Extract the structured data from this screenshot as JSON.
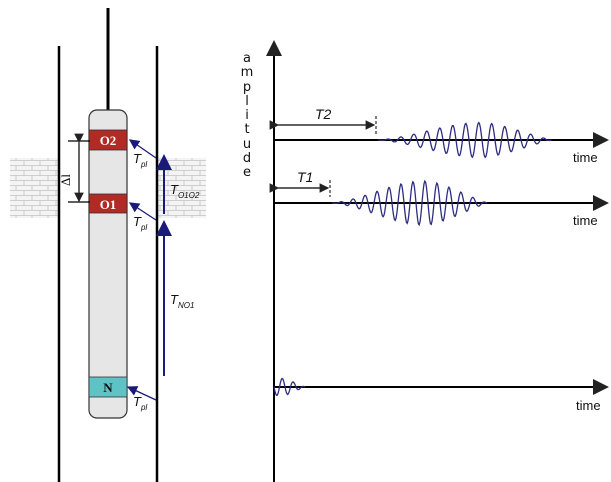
{
  "tool": {
    "labels": {
      "receiver_top": "O2",
      "receiver_bottom": "O1",
      "source": "N",
      "spacing": "Δl",
      "tpl_top": "T",
      "tpl_mid": "T",
      "tpl_bottom": "T",
      "tpl_sub": "pl",
      "t_o1o2": "T",
      "t_o1o2_sub": "O1O2",
      "t_no1": "T",
      "t_no1_sub": "NO1"
    },
    "colors": {
      "receiver": "#b22a24",
      "source": "#5fc3c6",
      "body": "#e6e6e6",
      "arrow": "#1a1a78"
    }
  },
  "plot": {
    "y_label_letters": [
      "a",
      "m",
      "p",
      "l",
      "i",
      "t",
      "u",
      "d",
      "e"
    ],
    "traces": [
      {
        "time_label": "time",
        "delay_label": "T2"
      },
      {
        "time_label": "time",
        "delay_label": "T1"
      },
      {
        "time_label": "time"
      }
    ],
    "wave_color": "#2d2d80"
  }
}
